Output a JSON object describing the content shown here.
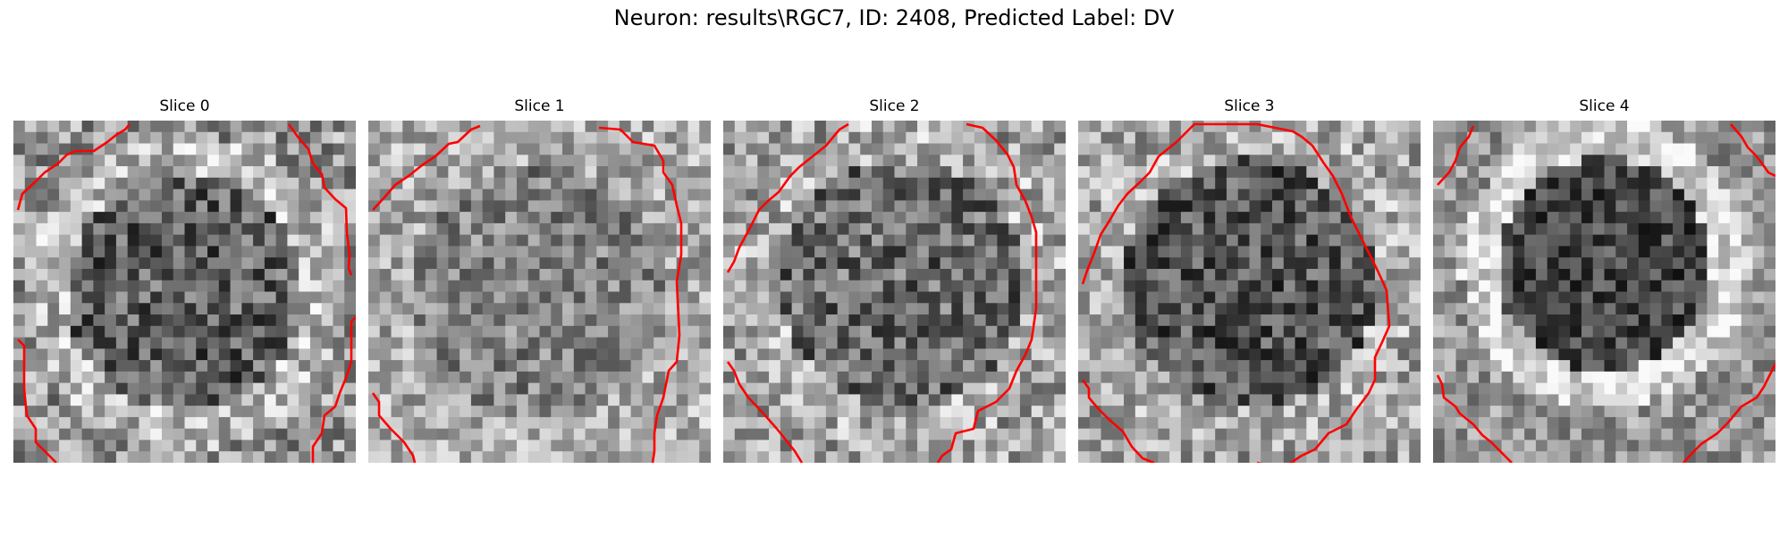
{
  "figure": {
    "title": "Neuron: results\\RGC7, ID: 2408, Predicted Label: DV"
  },
  "slices": [
    {
      "title": "Slice 0"
    },
    {
      "title": "Slice 1"
    },
    {
      "title": "Slice 2"
    },
    {
      "title": "Slice 3"
    },
    {
      "title": "Slice 4"
    }
  ],
  "colors": {
    "contour": "#ff0000",
    "background": "#ffffff"
  }
}
